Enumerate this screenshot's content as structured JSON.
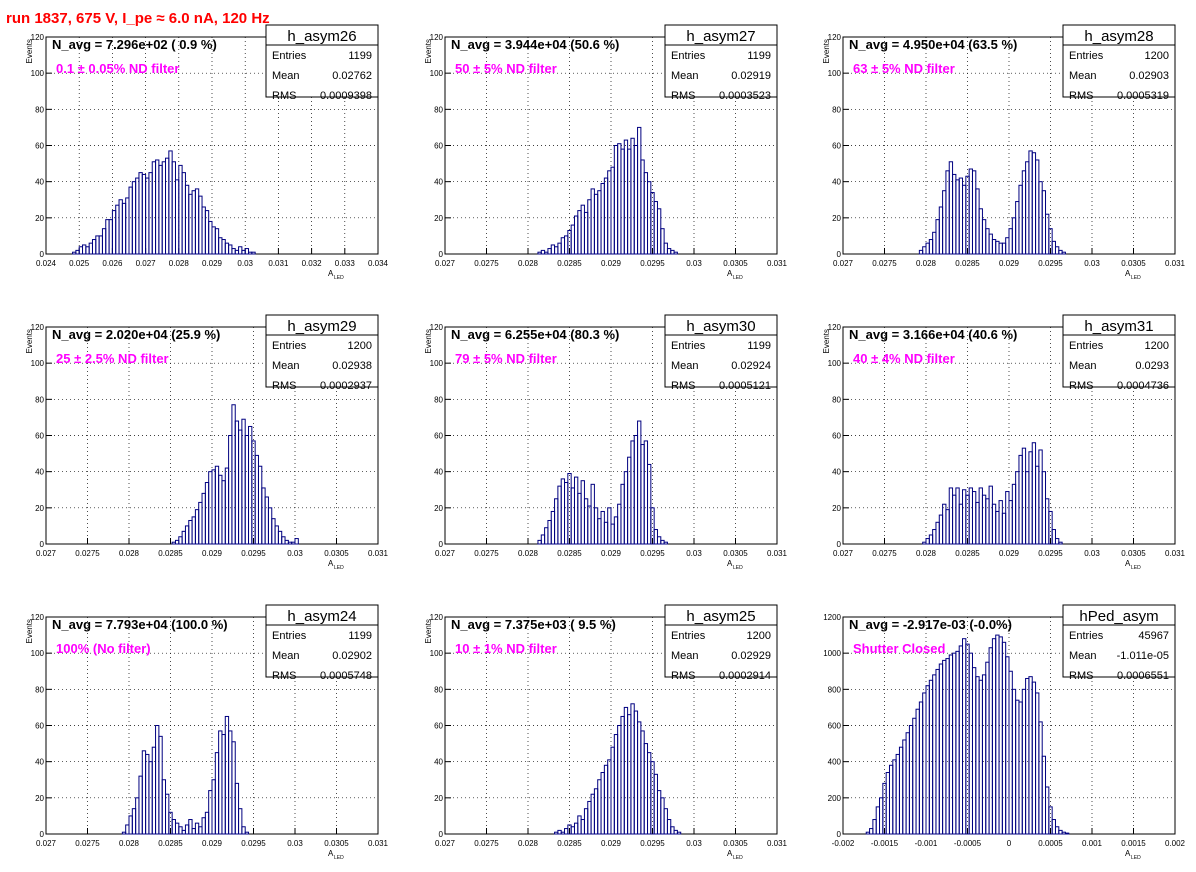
{
  "header": {
    "run_title": "run 1837,   675 V, I_pe ≈ 6.0 nA, 120 Hz"
  },
  "colors": {
    "histogram": "#000080",
    "annotation": "#ff00ff",
    "title": "#ff0000",
    "grid": "#000000"
  },
  "chart_data": [
    {
      "type": "bar",
      "name": "h_asym26",
      "stats": [
        [
          "Entries",
          "1199"
        ],
        [
          "Mean",
          "0.02762"
        ],
        [
          "RMS",
          "0.0009398"
        ]
      ],
      "navg": "N_avg = 7.296e+02 ( 0.9 %)",
      "note": "0.1 ± 0.05% ND filter",
      "xlabel": "A",
      "xlabel_sub": "LED",
      "ylabel": "Events",
      "xlim": [
        0.024,
        0.034
      ],
      "ylim": [
        0,
        120
      ],
      "xticks": [
        0.024,
        0.025,
        0.026,
        0.027,
        0.028,
        0.029,
        0.03,
        0.031,
        0.032,
        0.033,
        0.034
      ],
      "xtick_labels": [
        "0.024",
        "0.025",
        "0.026",
        "0.027",
        "0.028",
        "0.029",
        "0.03",
        "0.031",
        "0.032",
        "0.033",
        "0.034"
      ],
      "yticks": [
        0,
        20,
        40,
        60,
        80,
        100,
        120
      ],
      "ytick_labels": [
        "0",
        "20",
        "40",
        "60",
        "80",
        "100",
        "120"
      ],
      "bin_start": 0.0248,
      "bin_width": 0.0001,
      "values": [
        1,
        2,
        4,
        5,
        4,
        6,
        8,
        10,
        10,
        14,
        19,
        19,
        24,
        27,
        30,
        28,
        31,
        37,
        40,
        42,
        45,
        44,
        42,
        45,
        51,
        52,
        49,
        51,
        53,
        57,
        51,
        41,
        49,
        45,
        38,
        33,
        35,
        36,
        32,
        26,
        24,
        18,
        15,
        14,
        9,
        8,
        6,
        5,
        3,
        2,
        4,
        2,
        3,
        1,
        1
      ]
    },
    {
      "type": "bar",
      "name": "h_asym27",
      "stats": [
        [
          "Entries",
          "1199"
        ],
        [
          "Mean",
          "0.02919"
        ],
        [
          "RMS",
          "0.0003523"
        ]
      ],
      "navg": "N_avg = 3.944e+04 (50.6 %)",
      "note": "50 ± 5% ND filter",
      "xlabel": "A",
      "xlabel_sub": "LED",
      "ylabel": "Events",
      "xlim": [
        0.027,
        0.031
      ],
      "ylim": [
        0,
        120
      ],
      "xticks": [
        0.027,
        0.0275,
        0.028,
        0.0285,
        0.029,
        0.0295,
        0.03,
        0.0305,
        0.031
      ],
      "xtick_labels": [
        "0.027",
        "0.0275",
        "0.028",
        "0.0285",
        "0.029",
        "0.0295",
        "0.03",
        "0.0305",
        "0.031"
      ],
      "yticks": [
        0,
        20,
        40,
        60,
        80,
        100,
        120
      ],
      "ytick_labels": [
        "0",
        "20",
        "40",
        "60",
        "80",
        "100",
        "120"
      ],
      "bin_start": 0.02812,
      "bin_width": 4e-05,
      "values": [
        1,
        2,
        1,
        3,
        5,
        4,
        6,
        9,
        10,
        13,
        16,
        21,
        24,
        27,
        23,
        30,
        36,
        33,
        35,
        39,
        42,
        46,
        48,
        60,
        61,
        58,
        63,
        58,
        64,
        60,
        70,
        52,
        45,
        40,
        34,
        29,
        25,
        14,
        6,
        3,
        2,
        1
      ]
    },
    {
      "type": "bar",
      "name": "h_asym28",
      "stats": [
        [
          "Entries",
          "1200"
        ],
        [
          "Mean",
          "0.02903"
        ],
        [
          "RMS",
          "0.0005319"
        ]
      ],
      "navg": "N_avg = 4.950e+04 (63.5 %)",
      "note": "63 ± 5% ND filter",
      "xlabel": "A",
      "xlabel_sub": "LED",
      "ylabel": "Events",
      "xlim": [
        0.027,
        0.031
      ],
      "ylim": [
        0,
        120
      ],
      "xticks": [
        0.027,
        0.0275,
        0.028,
        0.0285,
        0.029,
        0.0295,
        0.03,
        0.0305,
        0.031
      ],
      "xtick_labels": [
        "0.027",
        "0.0275",
        "0.028",
        "0.0285",
        "0.029",
        "0.0295",
        "0.03",
        "0.0305",
        "0.031"
      ],
      "yticks": [
        0,
        20,
        40,
        60,
        80,
        100,
        120
      ],
      "ytick_labels": [
        "0",
        "20",
        "40",
        "60",
        "80",
        "100",
        "120"
      ],
      "bin_start": 0.02792,
      "bin_width": 4e-05,
      "values": [
        2,
        4,
        6,
        8,
        12,
        19,
        26,
        35,
        46,
        51,
        44,
        41,
        42,
        38,
        43,
        47,
        46,
        36,
        25,
        19,
        14,
        11,
        8,
        7,
        6,
        6,
        9,
        14,
        20,
        29,
        38,
        46,
        51,
        57,
        56,
        52,
        40,
        35,
        22,
        14,
        7,
        4,
        2,
        1
      ]
    },
    {
      "type": "bar",
      "name": "h_asym29",
      "stats": [
        [
          "Entries",
          "1200"
        ],
        [
          "Mean",
          "0.02938"
        ],
        [
          "RMS",
          "0.0002937"
        ]
      ],
      "navg": "N_avg = 2.020e+04 (25.9 %)",
      "note": "25 ± 2.5% ND filter",
      "xlabel": "A",
      "xlabel_sub": "LED",
      "ylabel": "Events",
      "xlim": [
        0.027,
        0.031
      ],
      "ylim": [
        0,
        120
      ],
      "xticks": [
        0.027,
        0.0275,
        0.028,
        0.0285,
        0.029,
        0.0295,
        0.03,
        0.0305,
        0.031
      ],
      "xtick_labels": [
        "0.027",
        "0.0275",
        "0.028",
        "0.0285",
        "0.029",
        "0.0295",
        "0.03",
        "0.0305",
        "0.031"
      ],
      "yticks": [
        0,
        20,
        40,
        60,
        80,
        100,
        120
      ],
      "ytick_labels": [
        "0",
        "20",
        "40",
        "60",
        "80",
        "100",
        "120"
      ],
      "bin_start": 0.02852,
      "bin_width": 4e-05,
      "values": [
        1,
        2,
        4,
        7,
        10,
        13,
        15,
        19,
        23,
        28,
        34,
        40,
        41,
        43,
        38,
        35,
        42,
        60,
        77,
        68,
        63,
        69,
        60,
        65,
        57,
        49,
        43,
        31,
        26,
        20,
        14,
        10,
        7,
        4,
        2,
        1,
        1,
        3
      ]
    },
    {
      "type": "bar",
      "name": "h_asym30",
      "stats": [
        [
          "Entries",
          "1199"
        ],
        [
          "Mean",
          "0.02924"
        ],
        [
          "RMS",
          "0.0005121"
        ]
      ],
      "navg": "N_avg = 6.255e+04 (80.3 %)",
      "note": "79 ± 5% ND filter",
      "xlabel": "A",
      "xlabel_sub": "LED",
      "ylabel": "Events",
      "xlim": [
        0.027,
        0.031
      ],
      "ylim": [
        0,
        120
      ],
      "xticks": [
        0.027,
        0.0275,
        0.028,
        0.0285,
        0.029,
        0.0295,
        0.03,
        0.0305,
        0.031
      ],
      "xtick_labels": [
        "0.027",
        "0.0275",
        "0.028",
        "0.0285",
        "0.029",
        "0.0295",
        "0.03",
        "0.0305",
        "0.031"
      ],
      "yticks": [
        0,
        20,
        40,
        60,
        80,
        100,
        120
      ],
      "ytick_labels": [
        "0",
        "20",
        "40",
        "60",
        "80",
        "100",
        "120"
      ],
      "bin_start": 0.02812,
      "bin_width": 4e-05,
      "values": [
        2,
        5,
        9,
        13,
        18,
        25,
        32,
        36,
        34,
        39,
        31,
        37,
        28,
        35,
        25,
        21,
        33,
        20,
        14,
        18,
        12,
        20,
        11,
        15,
        22,
        33,
        40,
        48,
        57,
        60,
        68,
        55,
        57,
        44,
        20,
        8,
        4,
        2,
        1
      ]
    },
    {
      "type": "bar",
      "name": "h_asym31",
      "stats": [
        [
          "Entries",
          "1200"
        ],
        [
          "Mean",
          "0.0293"
        ],
        [
          "RMS",
          "0.0004736"
        ]
      ],
      "navg": "N_avg = 3.166e+04 (40.6 %)",
      "note": "40 ± 4% ND filter",
      "xlabel": "A",
      "xlabel_sub": "LED",
      "ylabel": "Events",
      "xlim": [
        0.027,
        0.031
      ],
      "ylim": [
        0,
        120
      ],
      "xticks": [
        0.027,
        0.0275,
        0.028,
        0.0285,
        0.029,
        0.0295,
        0.03,
        0.0305,
        0.031
      ],
      "xtick_labels": [
        "0.027",
        "0.0275",
        "0.028",
        "0.0285",
        "0.029",
        "0.0295",
        "0.03",
        "0.0305",
        "0.031"
      ],
      "yticks": [
        0,
        20,
        40,
        60,
        80,
        100,
        120
      ],
      "ytick_labels": [
        "0",
        "20",
        "40",
        "60",
        "80",
        "100",
        "120"
      ],
      "bin_start": 0.02796,
      "bin_width": 4e-05,
      "values": [
        1,
        3,
        5,
        8,
        12,
        16,
        22,
        19,
        31,
        27,
        31,
        22,
        30,
        27,
        31,
        29,
        23,
        31,
        27,
        25,
        32,
        22,
        18,
        24,
        17,
        29,
        24,
        33,
        40,
        49,
        53,
        40,
        51,
        56,
        43,
        52,
        40,
        25,
        18,
        8,
        3,
        1
      ]
    },
    {
      "type": "bar",
      "name": "h_asym24",
      "stats": [
        [
          "Entries",
          "1199"
        ],
        [
          "Mean",
          "0.02902"
        ],
        [
          "RMS",
          "0.0005748"
        ]
      ],
      "navg": "N_avg = 7.793e+04 (100.0 %)",
      "note": "100% (No filter)",
      "xlabel": "A",
      "xlabel_sub": "LED",
      "ylabel": "Events",
      "xlim": [
        0.027,
        0.031
      ],
      "ylim": [
        0,
        120
      ],
      "xticks": [
        0.027,
        0.0275,
        0.028,
        0.0285,
        0.029,
        0.0295,
        0.03,
        0.0305,
        0.031
      ],
      "xtick_labels": [
        "0.027",
        "0.0275",
        "0.028",
        "0.0285",
        "0.029",
        "0.0295",
        "0.03",
        "0.0305",
        "0.031"
      ],
      "yticks": [
        0,
        20,
        40,
        60,
        80,
        100,
        120
      ],
      "ytick_labels": [
        "0",
        "20",
        "40",
        "60",
        "80",
        "100",
        "120"
      ],
      "bin_start": 0.02792,
      "bin_width": 4e-05,
      "values": [
        1,
        5,
        10,
        14,
        20,
        32,
        46,
        44,
        40,
        48,
        60,
        54,
        30,
        22,
        12,
        8,
        6,
        4,
        2,
        5,
        8,
        3,
        6,
        4,
        9,
        12,
        24,
        30,
        45,
        57,
        55,
        65,
        57,
        51,
        28,
        14,
        4,
        1
      ]
    },
    {
      "type": "bar",
      "name": "h_asym25",
      "stats": [
        [
          "Entries",
          "1200"
        ],
        [
          "Mean",
          "0.02929"
        ],
        [
          "RMS",
          "0.0002914"
        ]
      ],
      "navg": "N_avg = 7.375e+03 ( 9.5 %)",
      "note": "10 ± 1% ND filter",
      "xlabel": "A",
      "xlabel_sub": "LED",
      "ylabel": "Events",
      "xlim": [
        0.027,
        0.031
      ],
      "ylim": [
        0,
        120
      ],
      "xticks": [
        0.027,
        0.0275,
        0.028,
        0.0285,
        0.029,
        0.0295,
        0.03,
        0.0305,
        0.031
      ],
      "xtick_labels": [
        "0.027",
        "0.0275",
        "0.028",
        "0.0285",
        "0.029",
        "0.0295",
        "0.03",
        "0.0305",
        "0.031"
      ],
      "yticks": [
        0,
        20,
        40,
        60,
        80,
        100,
        120
      ],
      "ytick_labels": [
        "0",
        "20",
        "40",
        "60",
        "80",
        "100",
        "120"
      ],
      "bin_start": 0.02832,
      "bin_width": 4e-05,
      "values": [
        1,
        2,
        1,
        3,
        5,
        4,
        6,
        10,
        8,
        14,
        18,
        22,
        25,
        30,
        34,
        38,
        41,
        48,
        55,
        60,
        65,
        70,
        66,
        72,
        68,
        62,
        57,
        50,
        45,
        40,
        33,
        24,
        20,
        14,
        8,
        4,
        2,
        1
      ]
    },
    {
      "type": "bar",
      "name": "hPed_asym",
      "stats": [
        [
          "Entries",
          "45967"
        ],
        [
          "Mean",
          "-1.011e-05"
        ],
        [
          "RMS",
          "0.0006551"
        ]
      ],
      "navg": "N_avg = -2.917e-03 (-0.0%)",
      "note": "Shutter Closed",
      "xlabel": "A",
      "xlabel_sub": "LED",
      "ylabel": "",
      "xlim": [
        -0.002,
        0.002
      ],
      "ylim": [
        0,
        1200
      ],
      "xticks": [
        -0.002,
        -0.0015,
        -0.001,
        -0.0005,
        0,
        0.0005,
        0.001,
        0.0015,
        0.002
      ],
      "xtick_labels": [
        "-0.002",
        "-0.0015",
        "-0.001",
        "-0.0005",
        "0",
        "0.0005",
        "0.001",
        "0.0015",
        "0.002"
      ],
      "yticks": [
        0,
        200,
        400,
        600,
        800,
        1000,
        1200
      ],
      "ytick_labels": [
        "0",
        "200",
        "400",
        "600",
        "800",
        "1000",
        "1200"
      ],
      "bin_start": -0.00172,
      "bin_width": 4e-05,
      "values": [
        10,
        30,
        80,
        150,
        200,
        280,
        340,
        380,
        410,
        440,
        480,
        520,
        560,
        600,
        640,
        690,
        730,
        780,
        820,
        850,
        880,
        910,
        940,
        960,
        970,
        990,
        1000,
        1010,
        1040,
        1080,
        1050,
        1000,
        920,
        870,
        850,
        880,
        950,
        1030,
        1080,
        1100,
        1090,
        1060,
        980,
        900,
        800,
        740,
        730,
        800,
        860,
        870,
        840,
        780,
        620,
        430,
        260,
        150,
        80,
        40,
        20,
        10,
        5
      ]
    }
  ]
}
